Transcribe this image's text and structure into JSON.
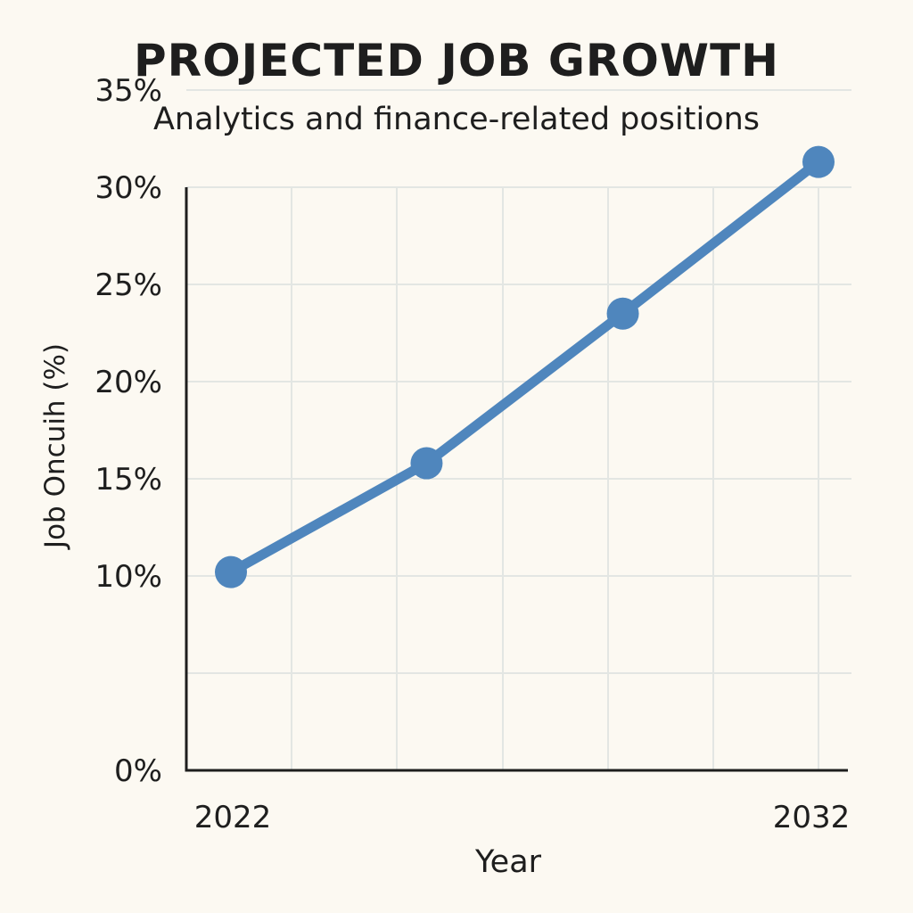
{
  "chart_data": {
    "type": "line",
    "title": "PROJECTED JOB GROWTH",
    "subtitle": "Analytics and finance-related positions",
    "xlabel": "Year",
    "ylabel": "Job Oncuih (%)",
    "x": [
      2022,
      2025.33,
      2028.67,
      2032
    ],
    "x_tick_labels": [
      "2022",
      "2032"
    ],
    "y_tick_labels": [
      "0%",
      "10%",
      "15%",
      "20%",
      "25%",
      "30%",
      "35%"
    ],
    "ylim": [
      0,
      35
    ],
    "grid": true,
    "series": [
      {
        "values": [
          10.2,
          15.8,
          23.5,
          31.3
        ],
        "color": "#4f86bd"
      }
    ]
  }
}
